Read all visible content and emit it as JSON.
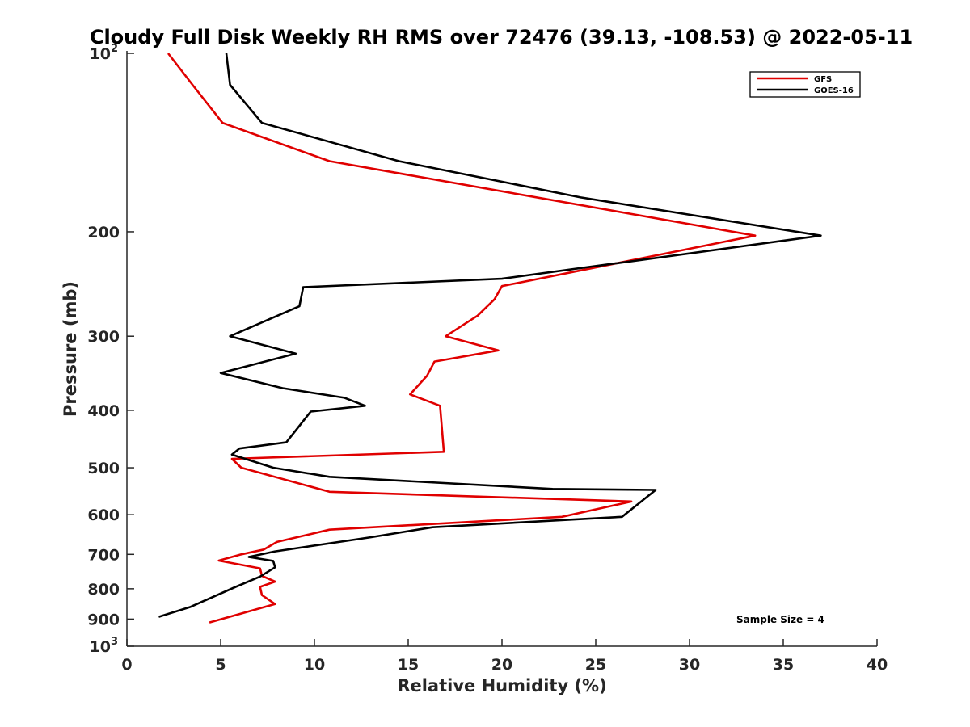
{
  "chart_data": {
    "type": "line",
    "title": "Cloudy Full Disk Weekly RH RMS over 72476 (39.13, -108.53) @ 2022-05-11",
    "xlabel": "Relative Humidity (%)",
    "ylabel": "Pressure (mb)",
    "xlim": [
      0,
      40
    ],
    "ylim": [
      100,
      1000
    ],
    "yscale": "log",
    "y_reversed": true,
    "x_ticks": [
      "0",
      "5",
      "10",
      "15",
      "20",
      "25",
      "30",
      "35",
      "40"
    ],
    "y_ticks": [
      {
        "value": 100,
        "base": "10",
        "exp": "2"
      },
      {
        "value": 200,
        "label": "200"
      },
      {
        "value": 300,
        "label": "300"
      },
      {
        "value": 400,
        "label": "400"
      },
      {
        "value": 500,
        "label": "500"
      },
      {
        "value": 600,
        "label": "600"
      },
      {
        "value": 700,
        "label": "700"
      },
      {
        "value": 800,
        "label": "800"
      },
      {
        "value": 900,
        "label": "900"
      },
      {
        "value": 1000,
        "base": "10",
        "exp": "3"
      }
    ],
    "legend_position": "top-right",
    "annotation": "Sample Size = 4",
    "series": [
      {
        "name": "GFS",
        "color": "#e00000",
        "x": [
          2.2,
          3.5,
          5.1,
          10.8,
          33.5,
          20.0,
          19.6,
          18.7,
          17.0,
          19.8,
          16.4,
          16.0,
          15.1,
          16.7,
          16.9,
          5.6,
          6.1,
          10.8,
          26.9,
          23.2,
          10.8,
          8.0,
          7.3,
          6.1,
          4.9,
          7.1,
          7.2,
          7.9,
          7.1,
          7.2,
          7.9,
          4.4
        ],
        "y": [
          100,
          113,
          131,
          152,
          203,
          247,
          260,
          277,
          300,
          317,
          331,
          350,
          376,
          393,
          470,
          483,
          500,
          549,
          570,
          605,
          636,
          667,
          687,
          700,
          717,
          739,
          761,
          778,
          794,
          820,
          849,
          912
        ]
      },
      {
        "name": "GOES-16",
        "color": "#000000",
        "x": [
          5.3,
          5.5,
          7.2,
          14.5,
          24.2,
          37.0,
          20.0,
          9.4,
          9.2,
          5.5,
          9.0,
          5.0,
          8.3,
          11.6,
          12.7,
          9.8,
          8.5,
          6.0,
          5.6,
          7.8,
          10.8,
          22.7,
          28.2,
          26.4,
          16.3,
          13.0,
          7.9,
          6.5,
          7.8,
          7.9,
          7.1,
          5.8,
          3.4,
          1.7
        ],
        "y": [
          100,
          113,
          131,
          152,
          175,
          203,
          240,
          248,
          267,
          300,
          321,
          346,
          367,
          381,
          393,
          402,
          453,
          464,
          475,
          500,
          518,
          543,
          545,
          605,
          630,
          655,
          692,
          707,
          718,
          736,
          763,
          794,
          858,
          892
        ]
      }
    ]
  }
}
